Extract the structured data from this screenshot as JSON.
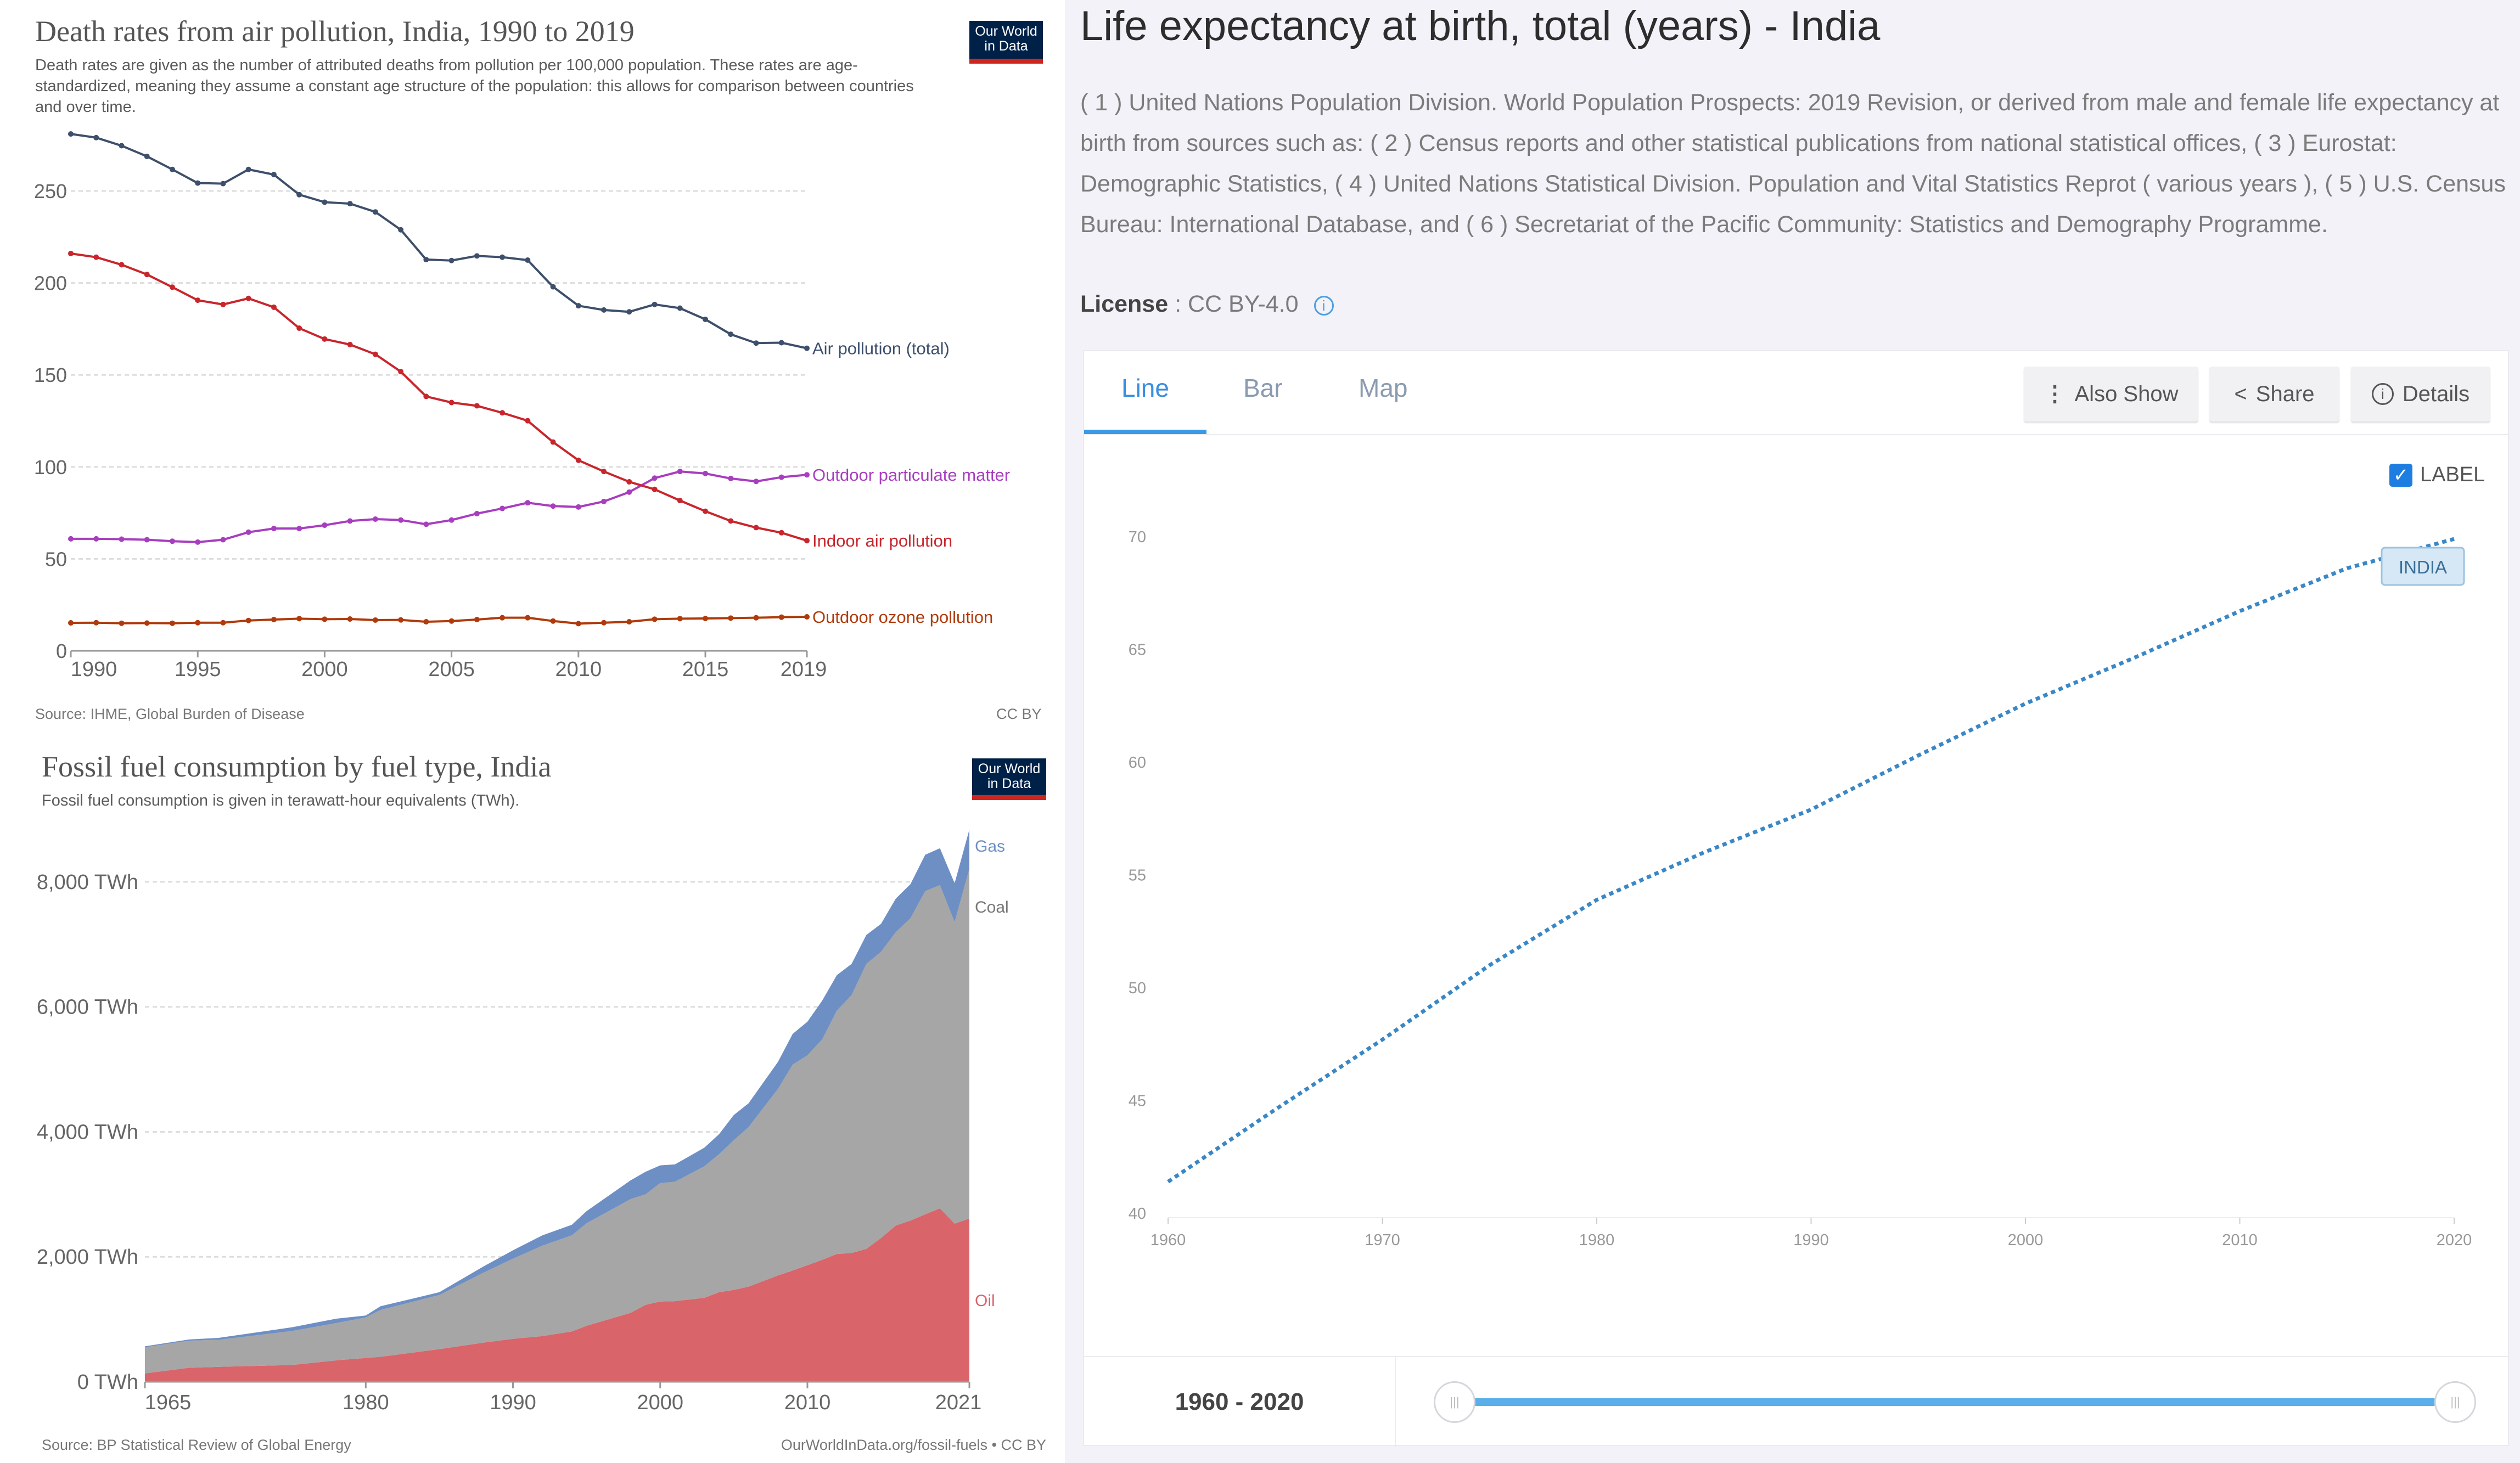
{
  "left_top": {
    "title": "Death rates from air pollution, India, 1990 to 2019",
    "subtitle": "Death rates are given as the number of attributed deaths from pollution per 100,000 population. These rates are age-standardized, meaning they assume a constant age structure of the population: this allows for comparison between countries and over time.",
    "logo": "Our World in Data",
    "source": "Source: IHME, Global Burden of Disease",
    "license": "CC BY"
  },
  "left_bottom": {
    "title": "Fossil fuel consumption by fuel type, India",
    "subtitle": "Fossil fuel consumption is given in terawatt-hour equivalents (TWh).",
    "logo": "Our World in Data",
    "source": "Source: BP Statistical Review of Global Energy",
    "license": "OurWorldInData.org/fossil-fuels • CC BY"
  },
  "right": {
    "title": "Life expectancy at birth, total (years) - India",
    "description": "( 1 ) United Nations Population Division. World Population Prospects: 2019 Revision, or derived from male and female life expectancy at birth from sources such as: ( 2 ) Census reports and other statistical publications from national statistical offices, ( 3 ) Eurostat: Demographic Statistics, ( 4 ) United Nations Statistical Division. Population and Vital Statistics Reprot ( various years ), ( 5 ) U.S. Census Bureau: International Database, and ( 6 ) Secretariat of the Pacific Community: Statistics and Demography Programme.",
    "license_label": "License",
    "license_value": " : CC BY-4.0",
    "tabs": [
      "Line",
      "Bar",
      "Map"
    ],
    "active_tab": "Line",
    "buttons": {
      "also_show": "Also Show",
      "share": "Share",
      "details": "Details"
    },
    "label_checkbox": "LABEL",
    "label_checked": true,
    "range_label": "1960 - 2020",
    "slider_range": [
      1960,
      2020
    ],
    "accent": "#3a87c6"
  },
  "chart_data": [
    {
      "type": "line",
      "title": "Death rates from air pollution, India, 1990 to 2019",
      "ylim": [
        0,
        280
      ],
      "yticks": [
        0,
        50,
        100,
        150,
        200,
        250
      ],
      "xticks": [
        1990,
        1995,
        2000,
        2005,
        2010,
        2015,
        2019
      ],
      "grid": true,
      "x": [
        1990,
        1991,
        1992,
        1993,
        1994,
        1995,
        1996,
        1997,
        1998,
        1999,
        2000,
        2001,
        2002,
        2003,
        2004,
        2005,
        2006,
        2007,
        2008,
        2009,
        2010,
        2011,
        2012,
        2013,
        2014,
        2015,
        2016,
        2017,
        2018,
        2019
      ],
      "series": [
        {
          "name": "Air pollution (total)",
          "color": "#3d4f6b",
          "values": [
            281,
            279,
            274.6,
            268.8,
            261.7,
            254.3,
            254,
            261.7,
            258.9,
            248,
            243.9,
            243.1,
            238.6,
            228.9,
            212.7,
            212.2,
            214.7,
            214,
            212.4,
            197.9,
            187.6,
            185.3,
            184.3,
            188.3,
            186.3,
            180.2,
            172.1,
            167.3,
            167.5,
            164.5
          ]
        },
        {
          "name": "Outdoor particulate matter",
          "color": "#a83dbf",
          "values": [
            60.9,
            60.9,
            60.7,
            60.4,
            59.6,
            59.1,
            60.4,
            64.5,
            66.5,
            66.5,
            68.3,
            70.6,
            71.6,
            71.1,
            68.8,
            71.1,
            74.6,
            77.4,
            80.5,
            78.7,
            78.2,
            81.2,
            86.3,
            93.9,
            97.5,
            96.4,
            93.7,
            92.1,
            94.4,
            95.7
          ]
        },
        {
          "name": "Indoor air pollution",
          "color": "#c8262c",
          "values": [
            216,
            214,
            209.9,
            204.6,
            197.7,
            190.6,
            188.3,
            191.6,
            186.8,
            175.4,
            169.5,
            166.5,
            161.2,
            151.8,
            138.3,
            135,
            133.2,
            129.4,
            125.1,
            113.5,
            103.6,
            97.5,
            91.9,
            87.8,
            81.7,
            75.9,
            70.6,
            67,
            64.2,
            59.9
          ]
        },
        {
          "name": "Outdoor ozone pollution",
          "color": "#b03a0b",
          "values": [
            15.2,
            15.3,
            15,
            15.1,
            15,
            15.3,
            15.3,
            16.5,
            17,
            17.5,
            17.2,
            17.3,
            16.7,
            16.8,
            15.8,
            16.2,
            17,
            18,
            18,
            16.2,
            14.8,
            15.3,
            15.8,
            17.2,
            17.5,
            17.6,
            17.8,
            18,
            18.3,
            18.5
          ]
        }
      ]
    },
    {
      "type": "area",
      "title": "Fossil fuel consumption by fuel type, India",
      "stacked": true,
      "ylabel": "TWh",
      "ylim": [
        0,
        8900
      ],
      "yticks": [
        "0 TWh",
        "2,000 TWh",
        "4,000 TWh",
        "6,000 TWh",
        "8,000 TWh"
      ],
      "ytick_values": [
        0,
        2000,
        4000,
        6000,
        8000
      ],
      "xticks": [
        1965,
        1980,
        1990,
        2000,
        2010,
        2021
      ],
      "grid": true,
      "x": [
        1965,
        1968,
        1970,
        1975,
        1978,
        1980,
        1981,
        1985,
        1988,
        1990,
        1992,
        1994,
        1995,
        1998,
        1999,
        2000,
        2001,
        2003,
        2004,
        2005,
        2006,
        2008,
        2009,
        2010,
        2011,
        2012,
        2013,
        2014,
        2015,
        2016,
        2017,
        2018,
        2019,
        2020,
        2021
      ],
      "series": [
        {
          "name": "Oil",
          "color": "#d9646a",
          "values": [
            134,
            224,
            239,
            269,
            343,
            381,
            400,
            522,
            627,
            687,
            731,
            806,
            896,
            1104,
            1231,
            1284,
            1290,
            1343,
            1433,
            1470,
            1522,
            1701,
            1780,
            1866,
            1950,
            2045,
            2060,
            2127,
            2300,
            2500,
            2580,
            2679,
            2776,
            2530,
            2612
          ]
        },
        {
          "name": "Coal",
          "color": "#a6a6a6",
          "values": [
            418,
            433,
            433,
            544,
            597,
            649,
            749,
            866,
            1119,
            1283,
            1448,
            1537,
            1641,
            1821,
            1769,
            1895,
            1911,
            2105,
            2209,
            2396,
            2553,
            2986,
            3295,
            3358,
            3528,
            3895,
            4127,
            4560,
            4581,
            4694,
            4838,
            5172,
            5172,
            4828,
            5597
          ]
        },
        {
          "name": "Gas",
          "color": "#6d8fc4",
          "values": [
            15,
            20,
            30,
            60,
            70,
            30,
            60,
            45,
            100,
            134,
            164,
            170,
            194,
            300,
            360,
            284,
            277,
            298,
            320,
            403,
            380,
            432,
            492,
            537,
            619,
            567,
            500,
            462,
            447,
            537,
            545,
            582,
            589,
            620,
            627
          ]
        }
      ]
    },
    {
      "type": "line",
      "title": "Life expectancy at birth, total (years) - India",
      "ylim": [
        40,
        70
      ],
      "yticks": [
        40,
        45,
        50,
        55,
        60,
        65,
        70
      ],
      "xticks": [
        1960,
        1970,
        1980,
        1990,
        2000,
        2010,
        2020
      ],
      "series_label": "INDIA",
      "x": [
        1960,
        1965,
        1970,
        1975,
        1980,
        1985,
        1990,
        1995,
        2000,
        2005,
        2010,
        2015,
        2020
      ],
      "series": [
        {
          "name": "INDIA",
          "color": "#3a87c6",
          "values": [
            41.4,
            44.6,
            47.7,
            51.0,
            53.9,
            56.0,
            57.9,
            60.3,
            62.6,
            64.6,
            66.7,
            68.6,
            69.9
          ]
        }
      ]
    }
  ]
}
